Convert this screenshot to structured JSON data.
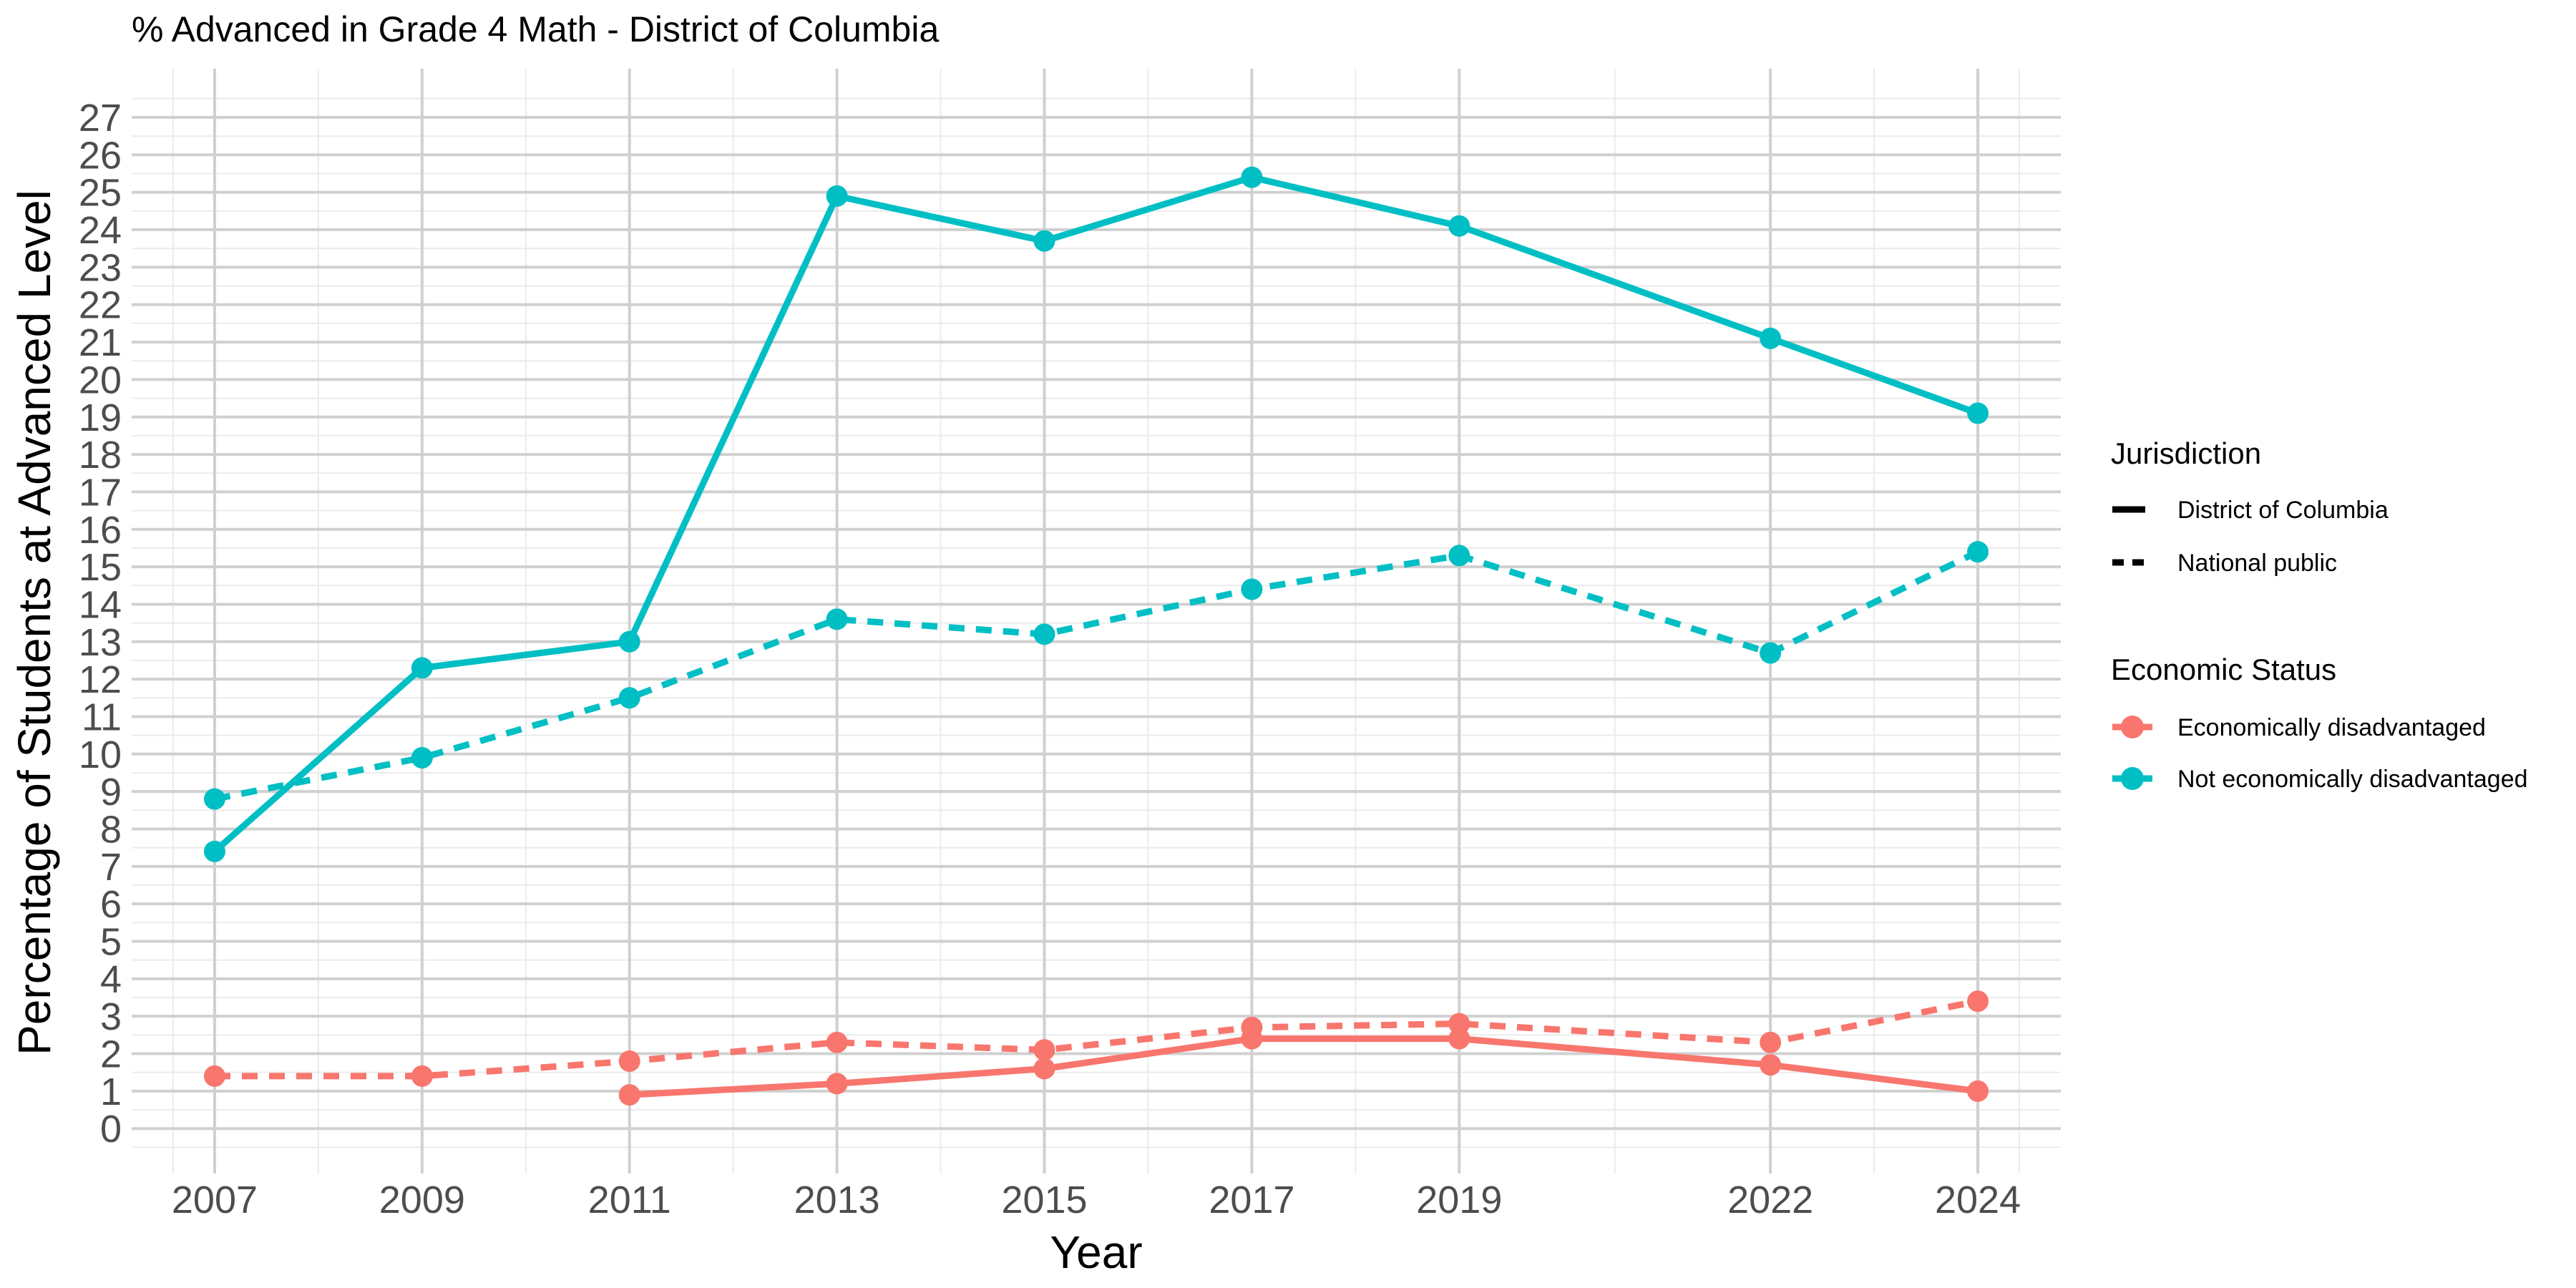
{
  "chart_data": {
    "type": "line",
    "title": "% Advanced in Grade 4 Math - District of Columbia",
    "xlabel": "Year",
    "ylabel": "Percentage of Students at Advanced Level",
    "x_ticks": [
      2007,
      2009,
      2011,
      2013,
      2015,
      2017,
      2019,
      2022,
      2024
    ],
    "xlim": [
      2006.2,
      2024.8
    ],
    "ylim": [
      -1.2,
      28.3
    ],
    "y_ticks": [
      0,
      1,
      2,
      3,
      4,
      5,
      6,
      7,
      8,
      9,
      10,
      11,
      12,
      13,
      14,
      15,
      16,
      17,
      18,
      19,
      20,
      21,
      22,
      23,
      24,
      25,
      26,
      27
    ],
    "grid": true,
    "legend_position": "right",
    "colors": {
      "Economically disadvantaged": "#F8766D",
      "Not economically disadvantaged": "#00BFC4",
      "grid_major": "#d0d0d0",
      "grid_minor": "#ebebeb"
    },
    "legends": {
      "jurisdiction": {
        "title": "Jurisdiction",
        "items": [
          {
            "label": "District of Columbia",
            "linetype": "solid"
          },
          {
            "label": "National public",
            "linetype": "dashed"
          }
        ]
      },
      "economic_status": {
        "title": "Economic Status",
        "items": [
          {
            "label": "Economically disadvantaged",
            "color": "#F8766D"
          },
          {
            "label": "Not economically disadvantaged",
            "color": "#00BFC4"
          }
        ]
      }
    },
    "series": [
      {
        "jurisdiction": "District of Columbia",
        "economic_status": "Not economically disadvantaged",
        "x": [
          2007,
          2009,
          2011,
          2013,
          2015,
          2017,
          2019,
          2022,
          2024
        ],
        "values": [
          7.4,
          12.3,
          13.0,
          24.9,
          23.7,
          25.4,
          24.1,
          21.1,
          19.1
        ]
      },
      {
        "jurisdiction": "National public",
        "economic_status": "Not economically disadvantaged",
        "x": [
          2007,
          2009,
          2011,
          2013,
          2015,
          2017,
          2019,
          2022,
          2024
        ],
        "values": [
          8.8,
          9.9,
          11.5,
          13.6,
          13.2,
          14.4,
          15.3,
          12.7,
          15.4
        ]
      },
      {
        "jurisdiction": "District of Columbia",
        "economic_status": "Economically disadvantaged",
        "x": [
          2011,
          2013,
          2015,
          2017,
          2019,
          2022,
          2024
        ],
        "values": [
          0.9,
          1.2,
          1.6,
          2.4,
          2.4,
          1.7,
          1.0
        ]
      },
      {
        "jurisdiction": "National public",
        "economic_status": "Economically disadvantaged",
        "x": [
          2007,
          2009,
          2011,
          2013,
          2015,
          2017,
          2019,
          2022,
          2024
        ],
        "values": [
          1.4,
          1.4,
          1.8,
          2.3,
          2.1,
          2.7,
          2.8,
          2.3,
          3.4
        ]
      }
    ]
  }
}
